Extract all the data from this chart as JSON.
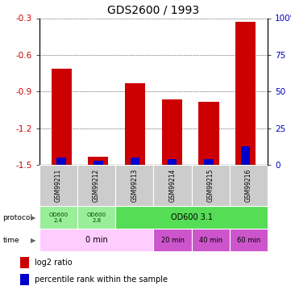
{
  "title": "GDS2600 / 1993",
  "samples": [
    "GSM99211",
    "GSM99212",
    "GSM99213",
    "GSM99214",
    "GSM99215",
    "GSM99216"
  ],
  "log2_ratios": [
    -0.71,
    -1.43,
    -0.83,
    -0.96,
    -0.98,
    -0.33
  ],
  "percentile_ranks_pct": [
    5,
    3,
    5,
    4,
    4,
    13
  ],
  "ylim_left": [
    -1.5,
    -0.3
  ],
  "ylim_right": [
    0,
    100
  ],
  "left_yticks": [
    -1.5,
    -1.2,
    -0.9,
    -0.6,
    -0.3
  ],
  "right_yticks": [
    0,
    25,
    50,
    75,
    100
  ],
  "bar_color_red": "#cc0000",
  "bar_color_blue": "#0000cc",
  "bar_width": 0.55,
  "blue_bar_width": 0.25,
  "sample_bg": "#cccccc",
  "title_fontsize": 10,
  "axis_label_color_left": "#cc0000",
  "axis_label_color_right": "#0000bb",
  "proto_col1_color": "#99ee99",
  "proto_col2_color": "#99ee99",
  "proto_col3_color": "#55dd55",
  "time_col1_color": "#ffccff",
  "time_col2_color": "#cc55cc"
}
